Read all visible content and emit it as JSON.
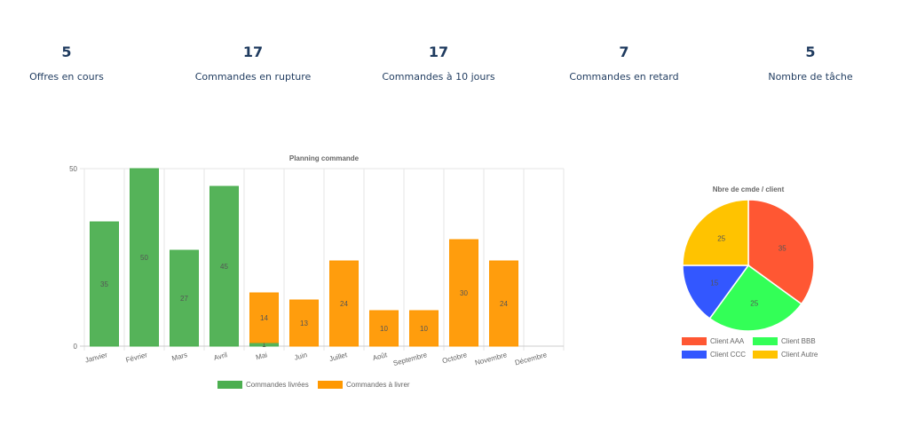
{
  "kpis": [
    {
      "value": "5",
      "label": "Offres en cours"
    },
    {
      "value": "17",
      "label": "Commandes en rupture"
    },
    {
      "value": "17",
      "label": "Commandes à 10 jours"
    },
    {
      "value": "7",
      "label": "Commandes en retard"
    },
    {
      "value": "5",
      "label": "Nombre de tâche"
    }
  ],
  "chart_data": [
    {
      "type": "bar",
      "stacked": true,
      "title": "Planning commande",
      "categories": [
        "Janvier",
        "Février",
        "Mars",
        "Avril",
        "Mai",
        "Juin",
        "Juillet",
        "Août",
        "Septembre",
        "Octobre",
        "Novembre",
        "Décembre"
      ],
      "series": [
        {
          "name": "Commandes livrées",
          "color": "#4caf50",
          "values": [
            35,
            50,
            27,
            45,
            1,
            0,
            0,
            0,
            0,
            0,
            0,
            0
          ]
        },
        {
          "name": "Commandes à livrer",
          "color": "#ff9800",
          "values": [
            0,
            0,
            0,
            0,
            14,
            13,
            24,
            10,
            10,
            30,
            24,
            0
          ]
        }
      ],
      "yticks": [
        "0",
        "50"
      ],
      "ylim": [
        0,
        50
      ],
      "legend": "bottom",
      "grid": true
    },
    {
      "type": "pie",
      "title": "Nbre de cmde / client",
      "slices": [
        {
          "label": "Client AAA",
          "value": 35,
          "color": "#ff5733"
        },
        {
          "label": "Client BBB",
          "value": 25,
          "color": "#33ff57"
        },
        {
          "label": "Client CCC",
          "value": 15,
          "color": "#3357ff"
        },
        {
          "label": "Client Autre",
          "value": 25,
          "color": "#ffc300"
        }
      ],
      "legend": "bottom"
    }
  ]
}
